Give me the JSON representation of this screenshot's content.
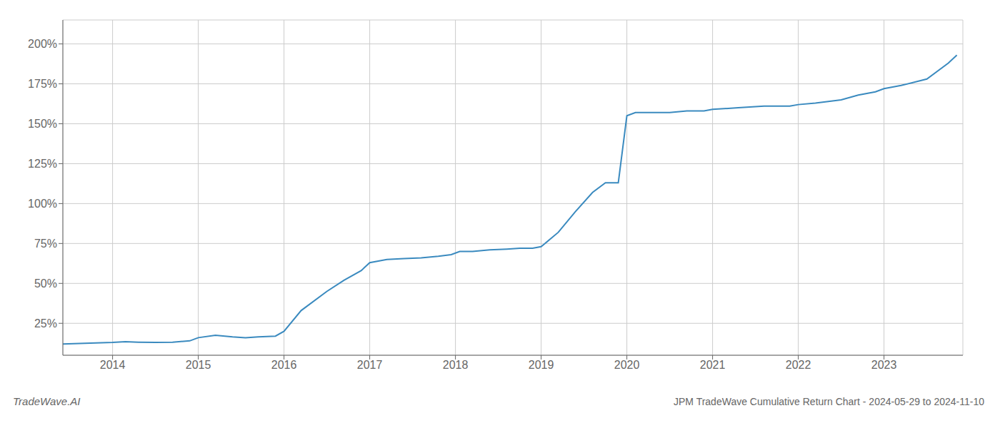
{
  "chart_data": {
    "type": "line",
    "title": "JPM TradeWave Cumulative Return Chart - 2024-05-29 to 2024-11-10",
    "annotations": [
      "TradeWave.AI"
    ],
    "x": [
      2013.42,
      2014.0,
      2014.15,
      2014.3,
      2014.5,
      2014.7,
      2014.9,
      2015.0,
      2015.2,
      2015.4,
      2015.55,
      2015.7,
      2015.9,
      2016.0,
      2016.2,
      2016.5,
      2016.7,
      2016.9,
      2017.0,
      2017.2,
      2017.4,
      2017.6,
      2017.8,
      2017.95,
      2018.05,
      2018.2,
      2018.4,
      2018.6,
      2018.75,
      2018.9,
      2019.0,
      2019.2,
      2019.4,
      2019.6,
      2019.75,
      2019.9,
      2020.0,
      2020.1,
      2020.3,
      2020.5,
      2020.7,
      2020.9,
      2021.0,
      2021.3,
      2021.6,
      2021.9,
      2022.0,
      2022.2,
      2022.5,
      2022.7,
      2022.9,
      2023.0,
      2023.2,
      2023.5,
      2023.75,
      2023.85
    ],
    "values": [
      12,
      13,
      13.5,
      13.2,
      13,
      13.2,
      14,
      16,
      17.5,
      16.5,
      16,
      16.5,
      17,
      20,
      33,
      45,
      52,
      58,
      63,
      65,
      65.5,
      66,
      67,
      68,
      70,
      70,
      71,
      71.5,
      72,
      72,
      73,
      82,
      95,
      107,
      113,
      113,
      155,
      157,
      157,
      157,
      158,
      158,
      159,
      160,
      161,
      161,
      162,
      163,
      165,
      168,
      170,
      172,
      174,
      178,
      188,
      193
    ],
    "color": "#3a8abf",
    "xlim": [
      2013.42,
      2023.92
    ],
    "xticks": [
      2014,
      2015,
      2016,
      2017,
      2018,
      2019,
      2020,
      2021,
      2022,
      2023
    ],
    "ylim": [
      5,
      215
    ],
    "yticks": [
      {
        "value": 25,
        "label": "25%"
      },
      {
        "value": 50,
        "label": "50%"
      },
      {
        "value": 75,
        "label": "75%"
      },
      {
        "value": 100,
        "label": "100%"
      },
      {
        "value": 125,
        "label": "125%"
      },
      {
        "value": 150,
        "label": "150%"
      },
      {
        "value": 175,
        "label": "175%"
      },
      {
        "value": 200,
        "label": "200%"
      }
    ],
    "grid": true
  }
}
